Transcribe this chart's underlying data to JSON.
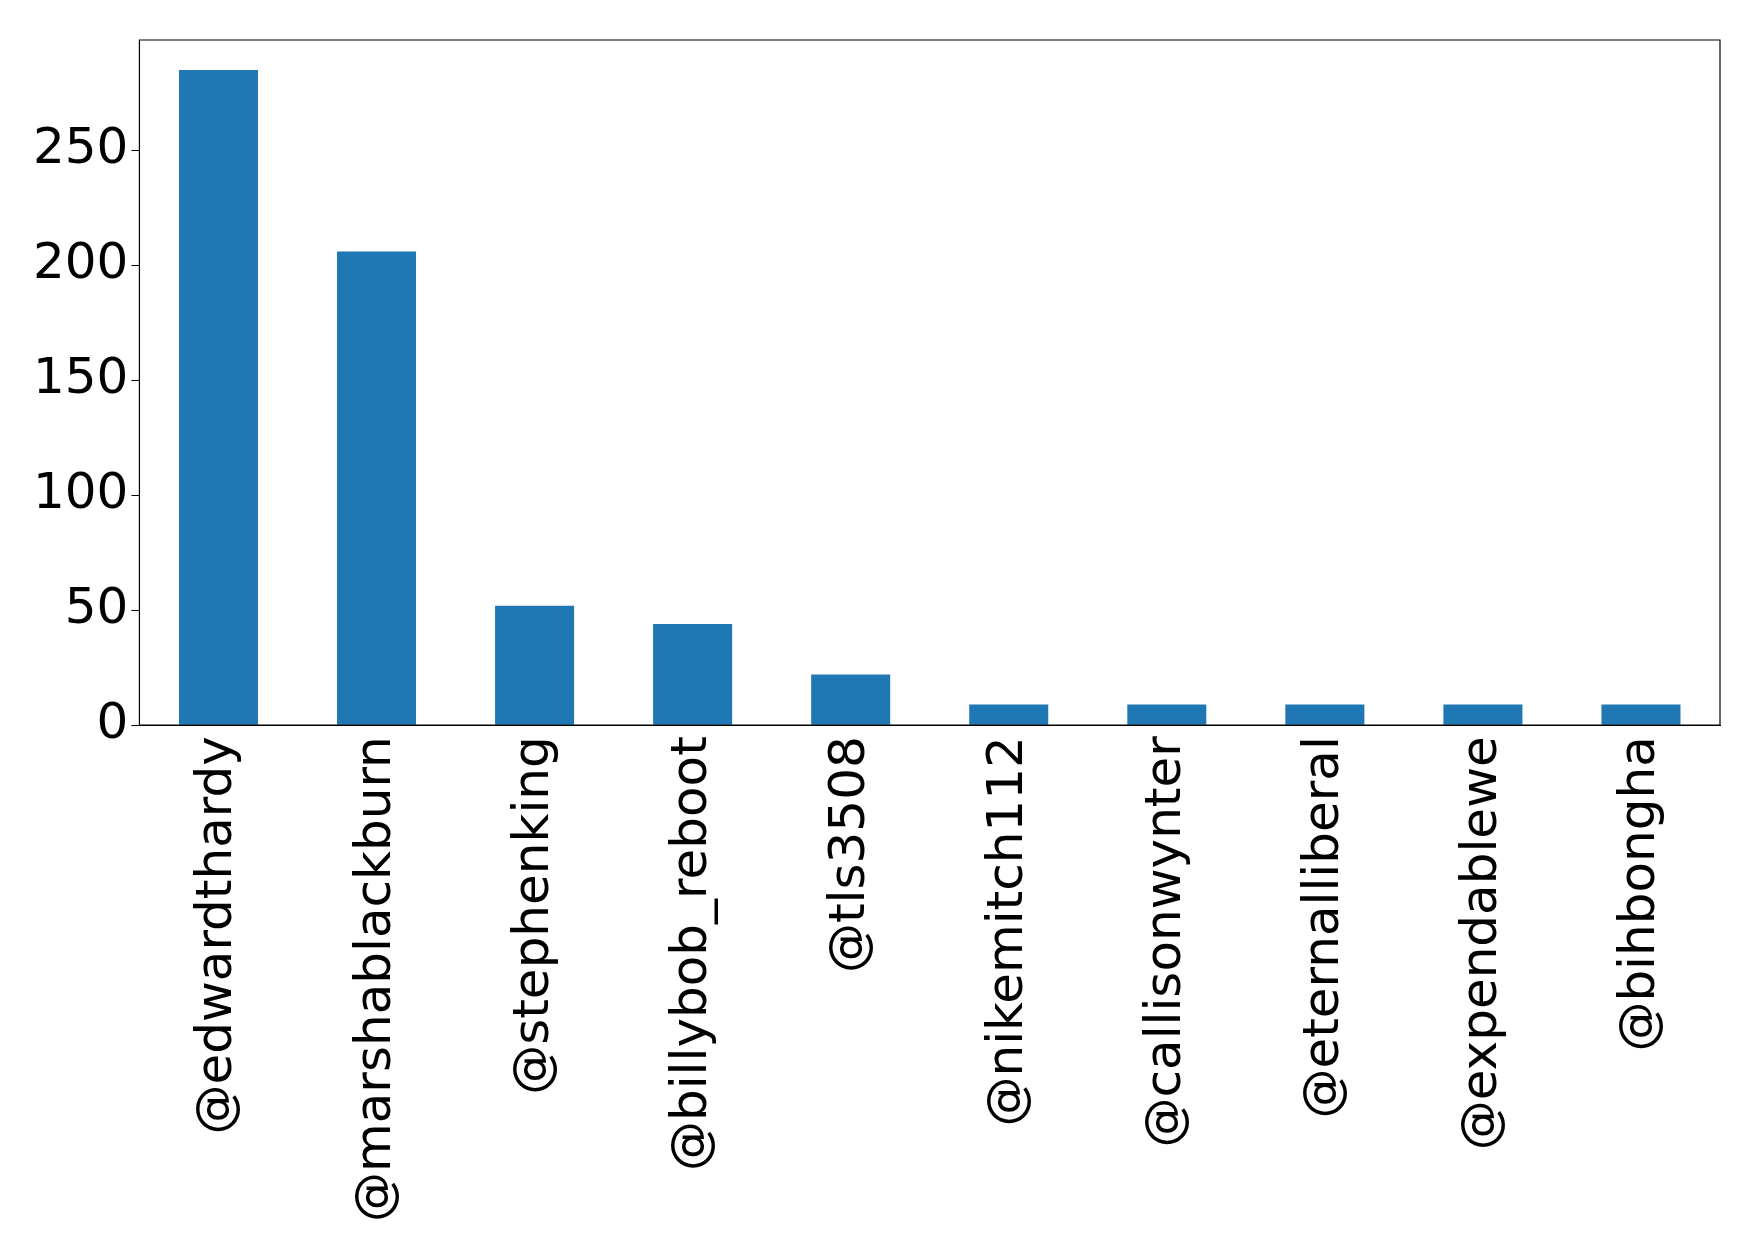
{
  "chart_data": {
    "type": "bar",
    "categories": [
      "@edwardthardy",
      "@marshablackburn",
      "@stephenking",
      "@billybob_reboot",
      "@tls3508",
      "@nikemitch112",
      "@callisonwynter",
      "@eternalliberal",
      "@expendablewe",
      "@bihbongha"
    ],
    "values": [
      285,
      206,
      52,
      44,
      22,
      9,
      9,
      9,
      9,
      9
    ],
    "color": "#1f77b4",
    "ylim": [
      0,
      298
    ],
    "yticks": [
      0,
      50,
      100,
      150,
      200,
      250
    ],
    "grid": false,
    "legend": false
  }
}
